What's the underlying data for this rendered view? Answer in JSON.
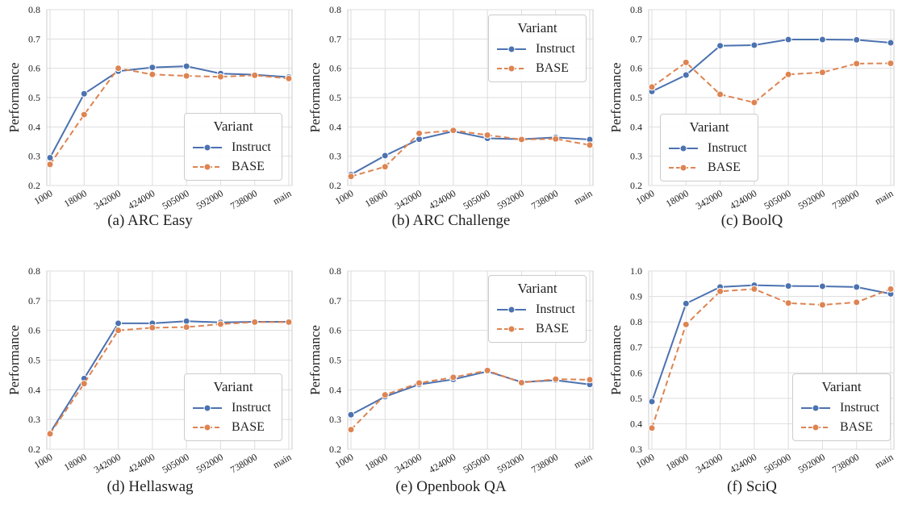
{
  "colors": {
    "instruct": "#4c72b0",
    "base": "#dd8452",
    "grid": "#dddddd"
  },
  "chart_data": [
    {
      "type": "line",
      "caption": "(a) ARC Easy",
      "ylabel": "Performance",
      "categories": [
        "1000",
        "18000",
        "342000",
        "424000",
        "505000",
        "592000",
        "738000",
        "main"
      ],
      "ylim": [
        0.2,
        0.8
      ],
      "yticks": [
        "0.2",
        "0.3",
        "0.4",
        "0.5",
        "0.6",
        "0.7",
        "0.8"
      ],
      "grid": true,
      "legend": {
        "title": "Variant",
        "position": "center-right"
      },
      "series": [
        {
          "name": "Instruct",
          "values": [
            0.295,
            0.513,
            0.59,
            0.603,
            0.607,
            0.582,
            0.578,
            0.57
          ]
        },
        {
          "name": "BASE",
          "values": [
            0.272,
            0.442,
            0.6,
            0.579,
            0.574,
            0.571,
            0.576,
            0.565
          ]
        }
      ]
    },
    {
      "type": "line",
      "caption": "(b) ARC Challenge",
      "ylabel": "Performance",
      "categories": [
        "1000",
        "18000",
        "342000",
        "424000",
        "505000",
        "592000",
        "738000",
        "main"
      ],
      "ylim": [
        0.2,
        0.8
      ],
      "yticks": [
        "0.2",
        "0.3",
        "0.4",
        "0.5",
        "0.6",
        "0.7",
        "0.8"
      ],
      "grid": true,
      "legend": {
        "title": "Variant",
        "position": "top-right"
      },
      "series": [
        {
          "name": "Instruct",
          "values": [
            0.237,
            0.302,
            0.358,
            0.385,
            0.361,
            0.358,
            0.364,
            0.357
          ]
        },
        {
          "name": "BASE",
          "values": [
            0.231,
            0.264,
            0.378,
            0.388,
            0.372,
            0.357,
            0.359,
            0.338
          ]
        }
      ]
    },
    {
      "type": "line",
      "caption": "(c) BoolQ",
      "ylabel": "Performance",
      "categories": [
        "1000",
        "18000",
        "342000",
        "424000",
        "505000",
        "592000",
        "738000",
        "main"
      ],
      "ylim": [
        0.2,
        0.8
      ],
      "yticks": [
        "0.2",
        "0.3",
        "0.4",
        "0.5",
        "0.6",
        "0.7",
        "0.8"
      ],
      "grid": true,
      "legend": {
        "title": "Variant",
        "position": "bottom-left"
      },
      "series": [
        {
          "name": "Instruct",
          "values": [
            0.521,
            0.577,
            0.677,
            0.679,
            0.698,
            0.698,
            0.697,
            0.687
          ]
        },
        {
          "name": "BASE",
          "values": [
            0.536,
            0.62,
            0.511,
            0.483,
            0.579,
            0.586,
            0.616,
            0.617
          ]
        }
      ]
    },
    {
      "type": "line",
      "caption": "(d) Hellaswag",
      "ylabel": "Performance",
      "categories": [
        "1000",
        "18000",
        "342000",
        "424000",
        "505000",
        "592000",
        "738000",
        "main"
      ],
      "ylim": [
        0.2,
        0.8
      ],
      "yticks": [
        "0.2",
        "0.3",
        "0.4",
        "0.5",
        "0.6",
        "0.7",
        "0.8"
      ],
      "grid": true,
      "legend": {
        "title": "Variant",
        "position": "bottom-right"
      },
      "series": [
        {
          "name": "Instruct",
          "values": [
            0.255,
            0.438,
            0.624,
            0.624,
            0.631,
            0.627,
            0.629,
            0.629
          ]
        },
        {
          "name": "BASE",
          "values": [
            0.252,
            0.421,
            0.6,
            0.609,
            0.611,
            0.621,
            0.628,
            0.628
          ]
        }
      ]
    },
    {
      "type": "line",
      "caption": "(e) Openbook QA",
      "ylabel": "Performance",
      "categories": [
        "1000",
        "18000",
        "342000",
        "424000",
        "505000",
        "592000",
        "738000",
        "main"
      ],
      "ylim": [
        0.2,
        0.8
      ],
      "yticks": [
        "0.2",
        "0.3",
        "0.4",
        "0.5",
        "0.6",
        "0.7",
        "0.8"
      ],
      "grid": true,
      "legend": {
        "title": "Variant",
        "position": "top-right"
      },
      "series": [
        {
          "name": "Instruct",
          "values": [
            0.316,
            0.377,
            0.418,
            0.435,
            0.462,
            0.426,
            0.432,
            0.418
          ]
        },
        {
          "name": "BASE",
          "values": [
            0.266,
            0.383,
            0.423,
            0.442,
            0.465,
            0.424,
            0.436,
            0.434
          ]
        }
      ]
    },
    {
      "type": "line",
      "caption": "(f) SciQ",
      "ylabel": "Performance",
      "categories": [
        "1000",
        "18000",
        "342000",
        "424000",
        "505000",
        "592000",
        "738000",
        "main"
      ],
      "ylim": [
        0.3,
        1.0
      ],
      "yticks": [
        "0.3",
        "0.4",
        "0.5",
        "0.6",
        "0.7",
        "0.8",
        "0.9",
        "1.0"
      ],
      "grid": true,
      "legend": {
        "title": "Variant",
        "position": "bottom-right"
      },
      "series": [
        {
          "name": "Instruct",
          "values": [
            0.487,
            0.872,
            0.937,
            0.944,
            0.941,
            0.94,
            0.937,
            0.91
          ]
        },
        {
          "name": "BASE",
          "values": [
            0.383,
            0.79,
            0.92,
            0.929,
            0.874,
            0.867,
            0.877,
            0.929
          ]
        }
      ]
    }
  ]
}
